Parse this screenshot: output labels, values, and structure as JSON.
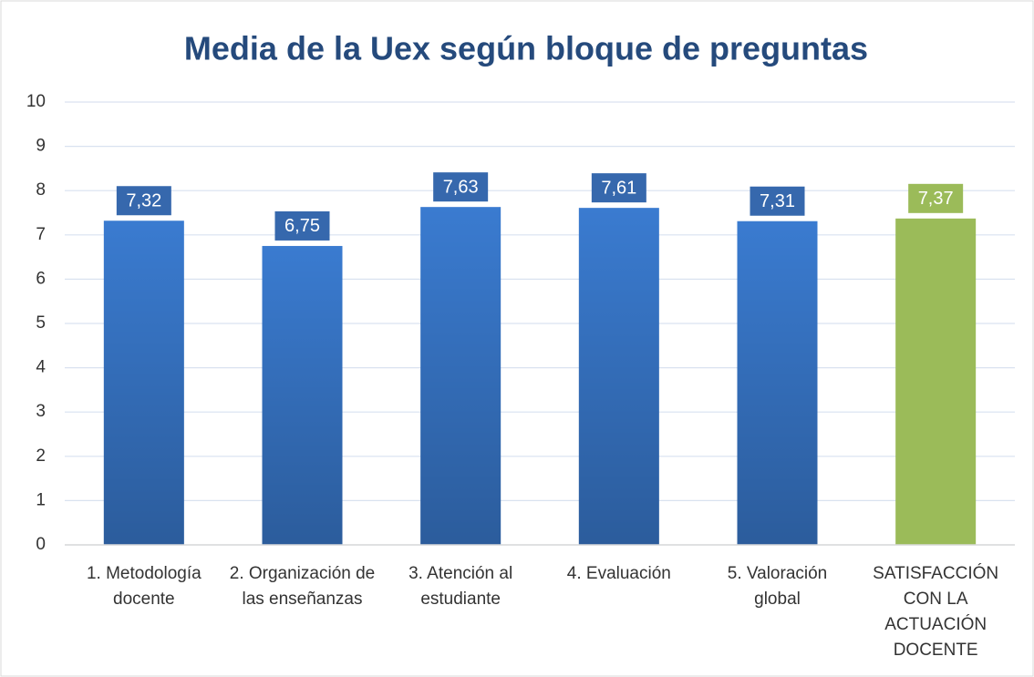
{
  "chart_data": {
    "type": "bar",
    "title": "Media de la Uex según bloque de preguntas",
    "categories": [
      "1. Metodología docente",
      "2. Organización de las enseñanzas",
      "3. Atención al estudiante",
      "4. Evaluación",
      "5. Valoración global",
      "SATISFACCIÓN CON LA ACTUACIÓN DOCENTE"
    ],
    "values": [
      7.32,
      6.75,
      7.63,
      7.61,
      7.31,
      7.37
    ],
    "value_labels": [
      "7,32",
      "6,75",
      "7,63",
      "7,61",
      "7,31",
      "7,37"
    ],
    "colors": [
      "#3a7bd0",
      "#3a7bd0",
      "#3a7bd0",
      "#3a7bd0",
      "#3a7bd0",
      "#9bbb59"
    ],
    "ylim": [
      0,
      10
    ],
    "yticks": [
      0,
      1,
      2,
      3,
      4,
      5,
      6,
      7,
      8,
      9,
      10
    ],
    "grid": true
  }
}
